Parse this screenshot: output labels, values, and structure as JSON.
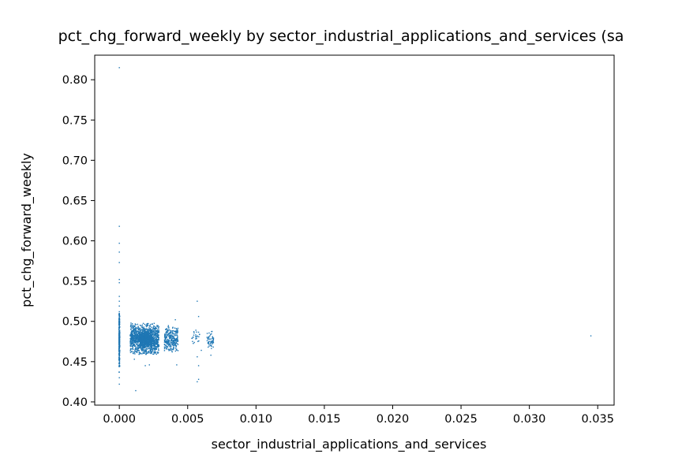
{
  "chart_data": {
    "type": "scatter",
    "title": "pct_chg_forward_weekly by sector_industrial_applications_and_services (sa",
    "xlabel": "sector_industrial_applications_and_services",
    "ylabel": "pct_chg_forward_weekly",
    "xlim": [
      -0.0018,
      0.0362
    ],
    "ylim": [
      0.396,
      0.8305
    ],
    "xticks": [
      "0.000",
      "0.005",
      "0.010",
      "0.015",
      "0.020",
      "0.025",
      "0.030",
      "0.035"
    ],
    "yticks": [
      "0.40",
      "0.45",
      "0.50",
      "0.55",
      "0.60",
      "0.65",
      "0.70",
      "0.75",
      "0.80"
    ],
    "grid": false,
    "legend": "none",
    "marker_color": "#1f77b4",
    "outliers": [
      {
        "x": 0.0,
        "y": 0.815
      },
      {
        "x": 0.0,
        "y": 0.618
      },
      {
        "x": 0.0,
        "y": 0.597
      },
      {
        "x": 0.0,
        "y": 0.586
      },
      {
        "x": 0.0,
        "y": 0.573
      },
      {
        "x": 0.0,
        "y": 0.552
      },
      {
        "x": 0.0,
        "y": 0.548
      },
      {
        "x": 0.0,
        "y": 0.531
      },
      {
        "x": 0.0,
        "y": 0.525
      },
      {
        "x": 0.0,
        "y": 0.519
      },
      {
        "x": 0.0,
        "y": 0.512
      },
      {
        "x": 0.0,
        "y": 0.437
      },
      {
        "x": 0.0,
        "y": 0.43
      },
      {
        "x": 0.0,
        "y": 0.422
      },
      {
        "x": 0.0011,
        "y": 0.453
      },
      {
        "x": 0.0012,
        "y": 0.414
      },
      {
        "x": 0.0019,
        "y": 0.445
      },
      {
        "x": 0.0022,
        "y": 0.446
      },
      {
        "x": 0.0041,
        "y": 0.502
      },
      {
        "x": 0.0042,
        "y": 0.446
      },
      {
        "x": 0.0056,
        "y": 0.489
      },
      {
        "x": 0.0057,
        "y": 0.525
      },
      {
        "x": 0.0058,
        "y": 0.506
      },
      {
        "x": 0.0057,
        "y": 0.456
      },
      {
        "x": 0.0058,
        "y": 0.445
      },
      {
        "x": 0.0057,
        "y": 0.425
      },
      {
        "x": 0.0058,
        "y": 0.428
      },
      {
        "x": 0.006,
        "y": 0.464
      },
      {
        "x": 0.0065,
        "y": 0.468
      },
      {
        "x": 0.0067,
        "y": 0.458
      },
      {
        "x": 0.0345,
        "y": 0.482
      }
    ],
    "clusters": [
      {
        "x_min": -3e-05,
        "x_max": 3e-05,
        "y_min": 0.436,
        "y_max": 0.51,
        "y_center": 0.478,
        "count": 260
      },
      {
        "x_min": 0.0008,
        "x_max": 0.0029,
        "y_min": 0.459,
        "y_max": 0.498,
        "y_center": 0.478,
        "count": 1100
      },
      {
        "x_min": 0.0015,
        "x_max": 0.0024,
        "y_min": 0.468,
        "y_max": 0.488,
        "y_center": 0.478,
        "count": 500
      },
      {
        "x_min": 0.0033,
        "x_max": 0.0043,
        "y_min": 0.462,
        "y_max": 0.495,
        "y_center": 0.478,
        "count": 280
      },
      {
        "x_min": 0.0053,
        "x_max": 0.0059,
        "y_min": 0.47,
        "y_max": 0.49,
        "y_center": 0.48,
        "count": 25
      },
      {
        "x_min": 0.0064,
        "x_max": 0.0069,
        "y_min": 0.466,
        "y_max": 0.488,
        "y_center": 0.477,
        "count": 55
      }
    ]
  }
}
